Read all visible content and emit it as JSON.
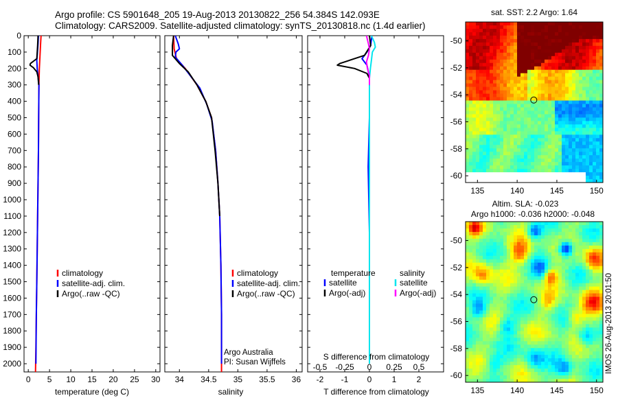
{
  "header": {
    "line1": "Argo profile: CS 5901648_205 19-Aug-2013 20130822_256 54.384S 142.093E",
    "line2": "Climatology: CARS2009. Satellite-adjusted climatology: synTS_20130818.nc (1.4d earlier)"
  },
  "side_stamp": "IMOS 26-Aug-2013 20:01:50",
  "colors": {
    "climatology": "#ff0000",
    "satellite": "#0000ff",
    "argo": "#000000",
    "sat_salinity": "#00e5ee",
    "argo_salinity": "#ff00ff"
  },
  "chart_data": [
    {
      "type": "line",
      "name": "temperature-profile",
      "xlabel": "temperature (deg C)",
      "xlim": [
        -1,
        31
      ],
      "ylim": [
        2050,
        0
      ],
      "x_ticks": [
        "0",
        "5",
        "10",
        "15",
        "20",
        "25",
        "30"
      ],
      "y_ticks": [
        "0",
        "100",
        "200",
        "300",
        "400",
        "500",
        "600",
        "700",
        "800",
        "900",
        "1000",
        "1100",
        "1200",
        "1300",
        "1400",
        "1500",
        "1600",
        "1700",
        "1800",
        "1900",
        "2000"
      ],
      "legend": [
        "climatology",
        "satellite-adj. clim.",
        "Argo(..raw -QC)"
      ],
      "series": [
        {
          "name": "climatology",
          "color": "#ff0000",
          "points": [
            [
              3.0,
              0
            ],
            [
              2.9,
              50
            ],
            [
              2.7,
              150
            ],
            [
              2.6,
              200
            ],
            [
              2.5,
              300
            ],
            [
              2.45,
              500
            ],
            [
              2.4,
              700
            ],
            [
              2.3,
              900
            ],
            [
              2.2,
              1100
            ],
            [
              2.1,
              1300
            ],
            [
              2.0,
              1500
            ],
            [
              1.9,
              1700
            ],
            [
              1.8,
              1900
            ],
            [
              1.7,
              2050
            ]
          ]
        },
        {
          "name": "satellite-adj. clim.",
          "color": "#0000ff",
          "points": [
            [
              2.4,
              0
            ],
            [
              2.3,
              50
            ],
            [
              2.1,
              120
            ],
            [
              2.0,
              150
            ],
            [
              2.1,
              200
            ],
            [
              2.3,
              250
            ],
            [
              2.5,
              300
            ],
            [
              2.45,
              500
            ],
            [
              2.4,
              700
            ],
            [
              2.3,
              900
            ],
            [
              2.2,
              1100
            ],
            [
              2.1,
              1300
            ],
            [
              2.0,
              1500
            ],
            [
              1.9,
              1700
            ],
            [
              1.8,
              2000
            ]
          ]
        },
        {
          "name": "Argo(..raw -QC)",
          "color": "#000000",
          "points": [
            [
              2.3,
              0
            ],
            [
              2.2,
              60
            ],
            [
              2.0,
              140
            ],
            [
              0.5,
              170
            ],
            [
              0.4,
              180
            ],
            [
              1.2,
              195
            ],
            [
              2.0,
              220
            ],
            [
              2.3,
              250
            ],
            [
              2.45,
              300
            ]
          ]
        }
      ]
    },
    {
      "type": "line",
      "name": "salinity-profile",
      "xlabel": "salinity",
      "xlim": [
        33.75,
        36.1
      ],
      "ylim": [
        2050,
        0
      ],
      "x_ticks": [
        "34",
        "34.5",
        "35",
        "35.5",
        "36"
      ],
      "legend": [
        "climatology",
        "satellite-adj. clim.",
        "Argo(..raw -QC)"
      ],
      "annotation": [
        "Argo Australia",
        "PI: Susan Wijffels"
      ],
      "series": [
        {
          "name": "climatology",
          "color": "#ff0000",
          "points": [
            [
              33.9,
              0
            ],
            [
              33.91,
              80
            ],
            [
              33.95,
              140
            ],
            [
              34.1,
              200
            ],
            [
              34.3,
              300
            ],
            [
              34.45,
              400
            ],
            [
              34.55,
              500
            ],
            [
              34.62,
              700
            ],
            [
              34.66,
              900
            ],
            [
              34.69,
              1100
            ],
            [
              34.71,
              1400
            ],
            [
              34.72,
              1700
            ],
            [
              34.72,
              2050
            ]
          ]
        },
        {
          "name": "satellite-adj. clim.",
          "color": "#0000ff",
          "points": [
            [
              33.93,
              0
            ],
            [
              33.98,
              50
            ],
            [
              34.0,
              80
            ],
            [
              33.94,
              100
            ],
            [
              33.93,
              130
            ],
            [
              34.05,
              180
            ],
            [
              34.2,
              250
            ],
            [
              34.35,
              320
            ],
            [
              34.47,
              420
            ],
            [
              34.56,
              520
            ],
            [
              34.62,
              700
            ],
            [
              34.66,
              900
            ],
            [
              34.69,
              1100
            ],
            [
              34.71,
              1400
            ],
            [
              34.72,
              1700
            ],
            [
              34.72,
              2000
            ]
          ]
        },
        {
          "name": "Argo(..raw -QC)",
          "color": "#000000",
          "points": [
            [
              33.9,
              0
            ],
            [
              33.88,
              60
            ],
            [
              33.88,
              120
            ],
            [
              34.0,
              170
            ],
            [
              34.15,
              220
            ],
            [
              34.3,
              300
            ],
            [
              34.45,
              400
            ],
            [
              34.55,
              500
            ],
            [
              34.61,
              700
            ],
            [
              34.66,
              900
            ],
            [
              34.69,
              1100
            ]
          ]
        }
      ]
    },
    {
      "type": "line",
      "name": "difference-profile",
      "xlabel": "T difference from climatology",
      "x2label": "S difference from climatology",
      "xlim": [
        -2.5,
        3.0
      ],
      "x2lim": [
        -0.625,
        0.75
      ],
      "ylim": [
        2050,
        0
      ],
      "x_ticks": [
        "-2",
        "-1",
        "0",
        "1",
        "2"
      ],
      "x2_ticks": [
        "-0.5",
        "-0.25",
        "0",
        "0.25",
        "0.5"
      ],
      "legend_headers": [
        "temperature",
        "salinity"
      ],
      "legend": [
        "satellite",
        "Argo(-adj)",
        "satellite",
        "Argo(-adj)"
      ],
      "series": [
        {
          "name": "temperature satellite",
          "color": "#0000ff",
          "points": [
            [
              0.1,
              0
            ],
            [
              0.05,
              60
            ],
            [
              -0.1,
              100
            ],
            [
              -0.3,
              140
            ],
            [
              -0.1,
              180
            ],
            [
              0.0,
              250
            ],
            [
              0.0,
              500
            ],
            [
              -0.05,
              800
            ],
            [
              0.0,
              1200
            ],
            [
              0.0,
              1600
            ],
            [
              0.0,
              2000
            ]
          ]
        },
        {
          "name": "temperature Argo(-adj)",
          "color": "#000000",
          "points": [
            [
              0.0,
              0
            ],
            [
              0.05,
              60
            ],
            [
              -0.2,
              120
            ],
            [
              -1.2,
              170
            ],
            [
              -1.3,
              180
            ],
            [
              -0.6,
              200
            ],
            [
              -0.1,
              230
            ],
            [
              0.0,
              260
            ],
            [
              0.0,
              300
            ]
          ]
        },
        {
          "name": "salinity satellite",
          "color": "#00e5ee",
          "points": [
            [
              0.02,
              0
            ],
            [
              0.05,
              40
            ],
            [
              0.06,
              70
            ],
            [
              0.03,
              100
            ],
            [
              0.02,
              150
            ],
            [
              0.01,
              200
            ],
            [
              0.0,
              260
            ],
            [
              0.0,
              500
            ],
            [
              0.0,
              1000
            ],
            [
              0.0,
              1600
            ],
            [
              0.0,
              2000
            ]
          ]
        },
        {
          "name": "salinity Argo(-adj)",
          "color": "#ff00ff",
          "points": [
            [
              -0.03,
              0
            ],
            [
              -0.01,
              50
            ],
            [
              0.0,
              80
            ],
            [
              -0.01,
              120
            ],
            [
              -0.03,
              160
            ],
            [
              -0.02,
              200
            ],
            [
              0.0,
              240
            ],
            [
              0.0,
              300
            ]
          ]
        }
      ]
    },
    {
      "type": "heatmap",
      "name": "sst-map",
      "title": "sat. SST: 2.2 Argo: 1.64",
      "xlim": [
        133.5,
        150.8
      ],
      "ylim": [
        -60.5,
        -48.6
      ],
      "x_ticks": [
        "135",
        "140",
        "145",
        "150"
      ],
      "y_ticks": [
        "-50",
        "-52",
        "-54",
        "-56",
        "-58",
        "-60"
      ],
      "argo_position": [
        142.093,
        -54.384
      ]
    },
    {
      "type": "heatmap",
      "name": "sla-map",
      "title": "Altim. SLA: -0.023",
      "subtitle": "Argo h1000: -0.036 h2000: -0.048",
      "xlim": [
        133.5,
        150.8
      ],
      "ylim": [
        -60.5,
        -48.6
      ],
      "x_ticks": [
        "135",
        "140",
        "145",
        "150"
      ],
      "y_ticks": [
        "-50",
        "-52",
        "-54",
        "-56",
        "-58",
        "-60"
      ],
      "argo_position": [
        142.093,
        -54.384
      ]
    }
  ]
}
